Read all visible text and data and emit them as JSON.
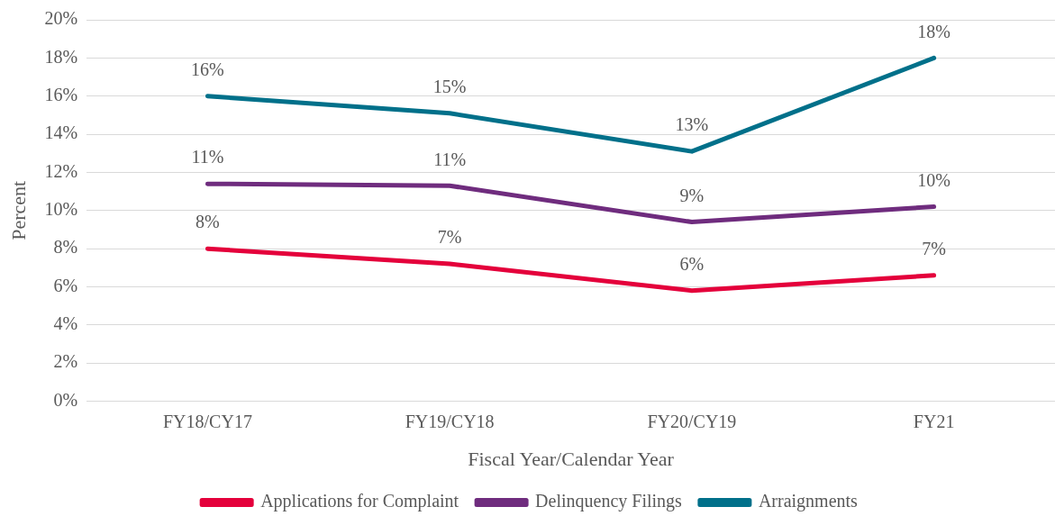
{
  "chart_data": {
    "type": "line",
    "xlabel": "Fiscal Year/Calendar Year",
    "ylabel": "Percent",
    "categories": [
      "FY18/CY17",
      "FY19/CY18",
      "FY20/CY19",
      "FY21"
    ],
    "series": [
      {
        "name": "Applications for Complaint",
        "color": "#e4003b",
        "values": [
          8.0,
          7.2,
          5.8,
          6.6
        ],
        "value_labels": [
          "8%",
          "7%",
          "6%",
          "7%"
        ]
      },
      {
        "name": "Delinquency Filings",
        "color": "#6f2c7e",
        "values": [
          11.4,
          11.3,
          9.4,
          10.2
        ],
        "value_labels": [
          "11%",
          "11%",
          "9%",
          "10%"
        ]
      },
      {
        "name": "Arraignments",
        "color": "#00708a",
        "values": [
          16.0,
          15.1,
          13.1,
          18.0
        ],
        "value_labels": [
          "16%",
          "15%",
          "13%",
          "18%"
        ]
      }
    ],
    "ylim": [
      0,
      20
    ],
    "yticks": [
      {
        "value": 0,
        "label": "0%"
      },
      {
        "value": 2,
        "label": "2%"
      },
      {
        "value": 4,
        "label": "4%"
      },
      {
        "value": 6,
        "label": "6%"
      },
      {
        "value": 8,
        "label": "8%"
      },
      {
        "value": 10,
        "label": "10%"
      },
      {
        "value": 12,
        "label": "12%"
      },
      {
        "value": 14,
        "label": "14%"
      },
      {
        "value": 16,
        "label": "16%"
      },
      {
        "value": 18,
        "label": "18%"
      },
      {
        "value": 20,
        "label": "20%"
      }
    ],
    "grid": "y",
    "legend": "bottom",
    "marker": "none",
    "line_style": "solid"
  }
}
